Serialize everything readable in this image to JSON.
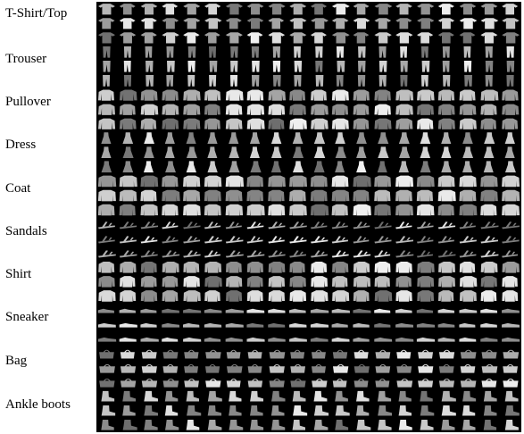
{
  "classes": [
    {
      "label": "T-Shirt/Top",
      "icon": "tshirt-icon"
    },
    {
      "label": "Trouser",
      "icon": "trouser-icon"
    },
    {
      "label": "Pullover",
      "icon": "pullover-icon"
    },
    {
      "label": "Dress",
      "icon": "dress-icon"
    },
    {
      "label": "Coat",
      "icon": "coat-icon"
    },
    {
      "label": "Sandals",
      "icon": "sandal-icon"
    },
    {
      "label": "Shirt",
      "icon": "shirt-icon"
    },
    {
      "label": "Sneaker",
      "icon": "sneaker-icon"
    },
    {
      "label": "Bag",
      "icon": "bag-icon"
    },
    {
      "label": "Ankle boots",
      "icon": "boot-icon"
    }
  ],
  "rows_per_class": 3,
  "columns": 20,
  "colors": {
    "background": "#000000",
    "item_light": "#d8d8d8",
    "item_dark": "#6e6e6e"
  }
}
